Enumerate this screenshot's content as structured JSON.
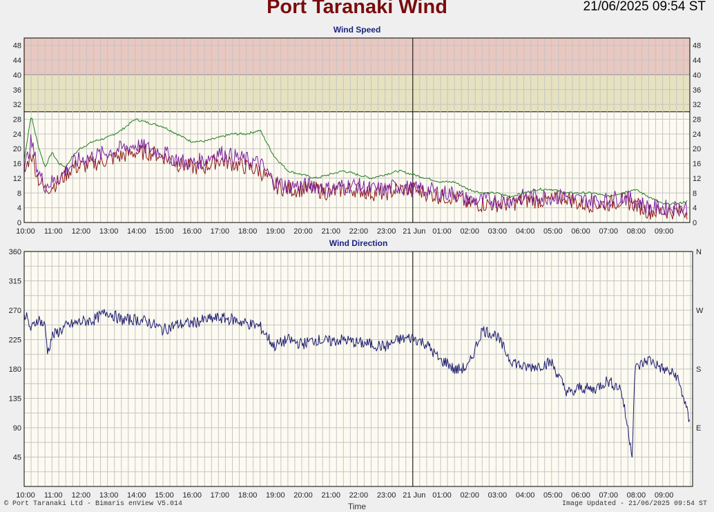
{
  "header": {
    "title": "Port Taranaki Wind",
    "timestamp": "21/06/2025 09:54 ST"
  },
  "footer": {
    "left": "© Port Taranaki Ltd - Bimaris enView V5.014",
    "center": "Time",
    "right": "Image Updated - 21/06/2025 09:54 ST"
  },
  "colors": {
    "plot_bg": "#fdfbf1",
    "danger_band": "#e8c8c0",
    "warning_band": "#e6e2c0",
    "gust": "#1e7a1e",
    "mean_speed": "#8b1a1a",
    "speed_trace": "#7b1fa2",
    "direction": "#1a1a6e"
  },
  "chart_data": [
    {
      "type": "line",
      "title": "Wind Speed",
      "x_tick_labels": [
        "10:00",
        "11:00",
        "12:00",
        "13:00",
        "14:00",
        "15:00",
        "16:00",
        "17:00",
        "18:00",
        "19:00",
        "20:00",
        "21:00",
        "22:00",
        "23:00",
        "21 Jun",
        "01:00",
        "02:00",
        "03:00",
        "04:00",
        "05:00",
        "06:00",
        "07:00",
        "08:00",
        "09:00"
      ],
      "y_tick_labels": [
        "0",
        "4",
        "8",
        "12",
        "16",
        "20",
        "24",
        "28",
        "32",
        "36",
        "40",
        "44",
        "48"
      ],
      "ylim": [
        0,
        50
      ],
      "bands": [
        {
          "from": 40,
          "to": 50,
          "color": "#e8c8c0"
        },
        {
          "from": 30,
          "to": 40,
          "color": "#e6e2c0"
        }
      ],
      "x_hours": [
        0,
        0.25,
        0.5,
        0.75,
        1,
        1.25,
        1.5,
        1.75,
        2,
        2.5,
        3,
        3.5,
        4,
        4.5,
        5,
        5.5,
        6,
        6.5,
        7,
        7.5,
        8,
        8.5,
        9,
        9.5,
        10,
        10.5,
        11,
        11.5,
        12,
        12.5,
        13,
        13.5,
        14,
        14.5,
        15,
        15.5,
        16,
        16.5,
        17,
        17.5,
        18,
        18.5,
        19,
        19.5,
        20,
        20.5,
        21,
        21.5,
        22,
        22.5,
        23,
        23.5,
        24
      ],
      "series": [
        {
          "values": [
            17,
            29,
            21,
            15,
            19,
            16,
            15,
            18,
            20,
            22,
            23,
            25,
            28,
            27,
            26,
            24,
            22,
            22,
            23,
            24,
            24,
            25,
            18,
            14,
            13,
            12,
            13,
            14,
            13,
            12,
            13,
            14,
            13,
            12,
            11,
            11,
            9,
            8,
            8,
            7,
            8,
            9,
            9,
            8,
            8,
            8,
            7,
            8,
            9,
            7,
            5,
            5,
            6
          ]
        },
        {
          "values": [
            13,
            19,
            12,
            9,
            10,
            11,
            13,
            15,
            15,
            16,
            17,
            18,
            19,
            19,
            18,
            16,
            15,
            15,
            17,
            16,
            15,
            14,
            10,
            9,
            9,
            9,
            8,
            9,
            9,
            8,
            8,
            9,
            9,
            8,
            7,
            7,
            5,
            5,
            5,
            5,
            6,
            6,
            6,
            7,
            5,
            5,
            5,
            6,
            5,
            3,
            3,
            3,
            3
          ]
        },
        {
          "values": [
            14,
            22,
            14,
            10,
            11,
            12,
            14,
            16,
            17,
            18,
            19,
            20,
            21,
            20,
            19,
            17,
            16,
            17,
            19,
            18,
            17,
            16,
            11,
            10,
            10,
            10,
            9,
            10,
            10,
            9,
            9,
            10,
            9,
            9,
            8,
            8,
            6,
            6,
            6,
            6,
            7,
            7,
            7,
            7,
            6,
            6,
            6,
            7,
            6,
            4,
            4,
            4,
            4
          ]
        }
      ]
    },
    {
      "type": "line",
      "title": "Wind Direction",
      "x_tick_labels": [
        "10:00",
        "11:00",
        "12:00",
        "13:00",
        "14:00",
        "15:00",
        "16:00",
        "17:00",
        "18:00",
        "19:00",
        "20:00",
        "21:00",
        "22:00",
        "23:00",
        "21 Jun",
        "01:00",
        "02:00",
        "03:00",
        "04:00",
        "05:00",
        "06:00",
        "07:00",
        "08:00",
        "09:00"
      ],
      "y_tick_labels": [
        "45",
        "90",
        "135",
        "180",
        "225",
        "270",
        "315",
        "360"
      ],
      "right_tick_labels": [
        "E",
        "S",
        "W",
        "N"
      ],
      "ylim": [
        0,
        360
      ],
      "x_hours": [
        0,
        0.25,
        0.5,
        0.75,
        0.85,
        1,
        1.5,
        2,
        2.5,
        3,
        3.5,
        4,
        4.5,
        5,
        5.5,
        6,
        6.5,
        7,
        7.5,
        8,
        8.5,
        9,
        9.5,
        10,
        10.5,
        11,
        11.5,
        12,
        12.5,
        13,
        13.5,
        14,
        14.5,
        15,
        15.25,
        15.5,
        16,
        16.5,
        17,
        17.5,
        18,
        18.5,
        19,
        19.5,
        19.75,
        20,
        20.5,
        21,
        21.5,
        21.9,
        22,
        22.5,
        23,
        23.5,
        23.8,
        24
      ],
      "series": [
        {
          "values": [
            268,
            240,
            258,
            245,
            205,
            230,
            245,
            252,
            255,
            268,
            255,
            256,
            252,
            240,
            248,
            250,
            255,
            258,
            256,
            250,
            245,
            215,
            225,
            218,
            225,
            222,
            225,
            220,
            218,
            214,
            225,
            228,
            218,
            192,
            190,
            178,
            183,
            240,
            232,
            195,
            182,
            185,
            190,
            148,
            142,
            152,
            148,
            162,
            150,
            50,
            180,
            195,
            180,
            170,
            130,
            90
          ]
        }
      ]
    }
  ]
}
